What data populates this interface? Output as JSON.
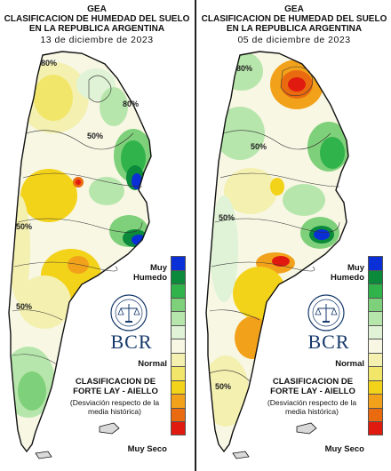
{
  "panels": [
    {
      "title1": "GEA",
      "title2": "CLASIFICACION DE HUMEDAD DEL SUELO",
      "title3": "EN LA REPUBLICA ARGENTINA",
      "date": "13 de diciembre de 2023",
      "contour_labels": [
        "50%",
        "50%",
        "50%",
        "80%",
        "80%"
      ]
    },
    {
      "title1": "GEA",
      "title2": "CLASIFICACION DE HUMEDAD DEL SUELO",
      "title3": "EN LA REPUBLICA ARGENTINA",
      "date": "05 de diciembre de 2023",
      "contour_labels": [
        "50%",
        "50%",
        "50%",
        "80%"
      ]
    }
  ],
  "legend": {
    "top_label": "Muy Humedo",
    "normal_label": "Normal",
    "bottom_label": "Muy Seco",
    "colors": [
      "#0a2fd6",
      "#0b8a3c",
      "#2fb34a",
      "#7fd07a",
      "#b7e6ac",
      "#e0f3d6",
      "#f7f7e4",
      "#f4f0b0",
      "#f1e56a",
      "#f3d21a",
      "#f2a21a",
      "#ea6a10",
      "#e11a10"
    ]
  },
  "brand": {
    "logo_text": "BCR",
    "seal_name": "bolsa-de-comercio-de-rosario-seal",
    "classification": "CLASIFICACION DE FORTE LAY - AIELLO",
    "description": "(Desviación respecto de la media histórica)"
  }
}
